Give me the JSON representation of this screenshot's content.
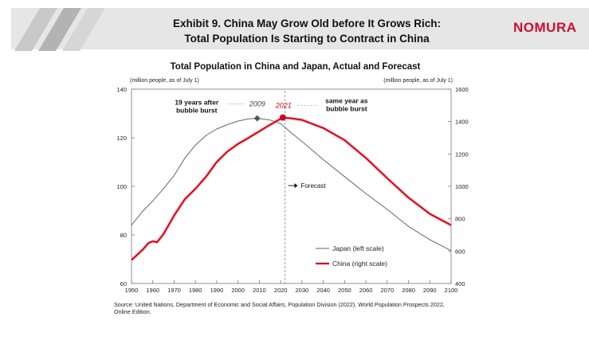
{
  "header": {
    "title_line1": "Exhibit 9. China May Grow Old before It Grows Rich:",
    "title_line2": "Total Population Is Starting to Contract in China",
    "brand": "NOMURA",
    "brand_color": "#c8102e"
  },
  "chart_data": {
    "type": "line",
    "title": "Total Population in China and Japan, Actual and Forecast",
    "left_axis_unit": "(million people, as of July 1)",
    "right_axis_unit": "(million people, as of July 1)",
    "x_ticks": [
      1950,
      1960,
      1970,
      1980,
      1990,
      2000,
      2010,
      2020,
      2030,
      2040,
      2050,
      2060,
      2070,
      2080,
      2090,
      2100
    ],
    "xlim": [
      1950,
      2100
    ],
    "left_ylim": [
      60,
      140
    ],
    "left_ticks": [
      60,
      80,
      100,
      120,
      140
    ],
    "right_ylim": [
      400,
      1600
    ],
    "right_ticks": [
      400,
      600,
      800,
      1000,
      1200,
      1400,
      1600
    ],
    "forecast_year": 2022,
    "forecast_label": "Forecast",
    "series": [
      {
        "name": "Japan (left scale)",
        "axis": "left",
        "color": "#666666",
        "x": [
          1950,
          1955,
          1960,
          1965,
          1970,
          1975,
          1980,
          1985,
          1990,
          1995,
          2000,
          2005,
          2009,
          2015,
          2020,
          2025,
          2030,
          2040,
          2050,
          2060,
          2070,
          2080,
          2090,
          2100
        ],
        "values": [
          84,
          89.5,
          94,
          99,
          104.5,
          111.5,
          117,
          121,
          123.6,
          125.4,
          126.9,
          127.8,
          128.0,
          127.3,
          125.8,
          122,
          118.5,
          111,
          104,
          97,
          90.5,
          83.5,
          78,
          73.5
        ]
      },
      {
        "name": "China (right scale)",
        "axis": "right",
        "color": "#d0021b",
        "x": [
          1950,
          1955,
          1958,
          1960,
          1962,
          1965,
          1970,
          1975,
          1980,
          1985,
          1990,
          1995,
          2000,
          2005,
          2010,
          2015,
          2021,
          2025,
          2030,
          2040,
          2050,
          2060,
          2070,
          2080,
          2090,
          2100
        ],
        "values": [
          545,
          605,
          650,
          660,
          655,
          705,
          820,
          920,
          985,
          1060,
          1150,
          1215,
          1262,
          1300,
          1340,
          1380,
          1425,
          1420,
          1410,
          1360,
          1285,
          1175,
          1050,
          930,
          830,
          760
        ]
      }
    ],
    "peaks": [
      {
        "series": "Japan",
        "year_label": "2009",
        "x": 2009,
        "value": 128.0,
        "axis": "left",
        "annotation": [
          "19 years after",
          "bubble burst"
        ]
      },
      {
        "series": "China",
        "year_label": "2021",
        "x": 2021,
        "value": 1425,
        "axis": "right",
        "annotation": [
          "same year as",
          "bubble burst"
        ]
      }
    ],
    "legend": [
      {
        "label": "Japan (left scale)",
        "color": "#666666"
      },
      {
        "label": "China (right scale)",
        "color": "#d0021b"
      }
    ]
  },
  "source": {
    "line1": "Source: United Nations, Department of Economic and Social Affairs, Population Division (2022). World Population Prospects 2022,",
    "line2": "Online Edition."
  }
}
